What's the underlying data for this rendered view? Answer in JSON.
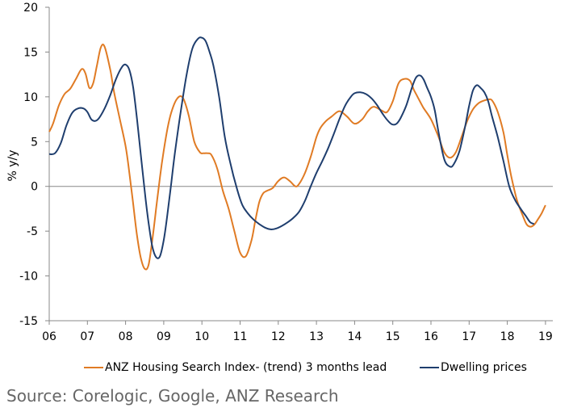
{
  "chart_data": {
    "type": "line",
    "title": "",
    "xlabel": "",
    "ylabel": "% y/y",
    "xlim": [
      2006,
      2019.2
    ],
    "ylim": [
      -15,
      20
    ],
    "yticks": [
      20,
      15,
      10,
      5,
      0,
      -5,
      -10,
      -15
    ],
    "xticks": [
      "06",
      "07",
      "08",
      "09",
      "10",
      "11",
      "12",
      "13",
      "14",
      "15",
      "16",
      "17",
      "18",
      "19"
    ],
    "grid": false,
    "legend_position": "bottom",
    "series": [
      {
        "name": "ANZ Housing Search Index- (trend) 3 months lead",
        "color": "#E07B24",
        "x": [
          2006.0,
          2006.1,
          2006.25,
          2006.4,
          2006.55,
          2006.7,
          2006.85,
          2006.95,
          2007.05,
          2007.15,
          2007.25,
          2007.35,
          2007.45,
          2007.6,
          2007.7,
          2007.85,
          2008.0,
          2008.1,
          2008.2,
          2008.3,
          2008.4,
          2008.5,
          2008.6,
          2008.7,
          2008.8,
          2008.9,
          2009.0,
          2009.1,
          2009.2,
          2009.35,
          2009.5,
          2009.65,
          2009.8,
          2009.95,
          2010.05,
          2010.15,
          2010.25,
          2010.4,
          2010.55,
          2010.7,
          2010.85,
          2011.0,
          2011.15,
          2011.3,
          2011.4,
          2011.5,
          2011.6,
          2011.7,
          2011.85,
          2012.0,
          2012.15,
          2012.3,
          2012.45,
          2012.55,
          2012.7,
          2012.85,
          2013.0,
          2013.1,
          2013.25,
          2013.4,
          2013.6,
          2013.8,
          2014.0,
          2014.2,
          2014.35,
          2014.5,
          2014.7,
          2014.85,
          2015.0,
          2015.15,
          2015.3,
          2015.45,
          2015.55,
          2015.65,
          2015.8,
          2016.0,
          2016.2,
          2016.35,
          2016.5,
          2016.65,
          2016.8,
          2016.95,
          2017.1,
          2017.25,
          2017.4,
          2017.5,
          2017.6,
          2017.75,
          2017.9,
          2018.0,
          2018.1,
          2018.25,
          2018.4,
          2018.5,
          2018.6,
          2018.7,
          2018.8,
          2018.9,
          2019.0
        ],
        "values": [
          6.1,
          7.0,
          9.0,
          10.3,
          10.9,
          12.0,
          13.1,
          12.6,
          11.0,
          11.5,
          13.5,
          15.5,
          15.6,
          13.0,
          10.5,
          7.5,
          4.5,
          1.5,
          -2.0,
          -5.5,
          -8.0,
          -9.2,
          -8.8,
          -6.0,
          -2.5,
          1.0,
          4.0,
          6.5,
          8.3,
          9.8,
          9.9,
          8.0,
          5.0,
          3.8,
          3.7,
          3.7,
          3.5,
          2.0,
          -0.5,
          -2.5,
          -5.0,
          -7.4,
          -7.8,
          -6.0,
          -3.8,
          -1.8,
          -0.8,
          -0.5,
          -0.2,
          0.6,
          1.0,
          0.6,
          0.0,
          0.3,
          1.5,
          3.3,
          5.5,
          6.5,
          7.3,
          7.8,
          8.4,
          7.8,
          7.0,
          7.5,
          8.4,
          8.9,
          8.5,
          8.3,
          9.5,
          11.5,
          12.0,
          11.8,
          10.8,
          10.0,
          8.8,
          7.5,
          5.5,
          3.8,
          3.2,
          3.8,
          5.5,
          7.3,
          8.6,
          9.3,
          9.6,
          9.7,
          9.6,
          8.3,
          6.0,
          3.5,
          1.2,
          -1.5,
          -3.2,
          -4.2,
          -4.5,
          -4.3,
          -3.7,
          -3.0,
          -2.1
        ]
      },
      {
        "name": "Dwelling prices",
        "color": "#1F3E6E",
        "x": [
          2006.0,
          2006.15,
          2006.3,
          2006.45,
          2006.6,
          2006.75,
          2006.9,
          2007.0,
          2007.1,
          2007.2,
          2007.3,
          2007.45,
          2007.6,
          2007.75,
          2007.9,
          2008.0,
          2008.1,
          2008.2,
          2008.3,
          2008.4,
          2008.5,
          2008.6,
          2008.7,
          2008.8,
          2008.9,
          2009.0,
          2009.1,
          2009.2,
          2009.3,
          2009.45,
          2009.6,
          2009.75,
          2009.9,
          2010.0,
          2010.1,
          2010.2,
          2010.3,
          2010.45,
          2010.6,
          2010.75,
          2010.9,
          2011.05,
          2011.2,
          2011.35,
          2011.5,
          2011.65,
          2011.8,
          2011.95,
          2012.1,
          2012.25,
          2012.4,
          2012.55,
          2012.7,
          2012.85,
          2013.0,
          2013.15,
          2013.3,
          2013.45,
          2013.6,
          2013.75,
          2013.9,
          2014.0,
          2014.15,
          2014.3,
          2014.45,
          2014.6,
          2014.75,
          2014.9,
          2015.0,
          2015.1,
          2015.2,
          2015.35,
          2015.5,
          2015.6,
          2015.7,
          2015.8,
          2015.9,
          2016.0,
          2016.1,
          2016.2,
          2016.35,
          2016.5,
          2016.6,
          2016.75,
          2016.9,
          2017.0,
          2017.1,
          2017.2,
          2017.3,
          2017.4,
          2017.5,
          2017.6,
          2017.75,
          2017.9,
          2018.05,
          2018.2,
          2018.35,
          2018.5,
          2018.6,
          2018.7
        ],
        "values": [
          3.6,
          3.7,
          4.8,
          6.8,
          8.2,
          8.7,
          8.7,
          8.3,
          7.5,
          7.3,
          7.6,
          8.7,
          10.2,
          12.0,
          13.3,
          13.6,
          13.0,
          11.0,
          7.5,
          3.5,
          -0.5,
          -4.0,
          -6.7,
          -7.9,
          -7.8,
          -6.0,
          -3.0,
          0.5,
          4.0,
          8.5,
          12.5,
          15.4,
          16.5,
          16.6,
          16.2,
          15.0,
          13.5,
          10.0,
          5.5,
          2.5,
          0.0,
          -2.0,
          -3.0,
          -3.7,
          -4.2,
          -4.6,
          -4.8,
          -4.7,
          -4.4,
          -4.0,
          -3.5,
          -2.8,
          -1.6,
          0.0,
          1.5,
          2.8,
          4.2,
          5.8,
          7.5,
          9.0,
          10.0,
          10.4,
          10.5,
          10.3,
          9.8,
          9.0,
          8.0,
          7.2,
          6.9,
          7.0,
          7.6,
          9.0,
          11.0,
          12.1,
          12.4,
          12.0,
          11.0,
          10.0,
          8.5,
          6.0,
          3.0,
          2.2,
          2.5,
          4.0,
          6.8,
          9.0,
          10.7,
          11.3,
          11.0,
          10.5,
          9.5,
          7.8,
          5.5,
          2.8,
          0.0,
          -1.5,
          -2.5,
          -3.4,
          -4.0,
          -4.2
        ]
      }
    ]
  },
  "source_text": "Source: Corelogic, Google, ANZ Research"
}
